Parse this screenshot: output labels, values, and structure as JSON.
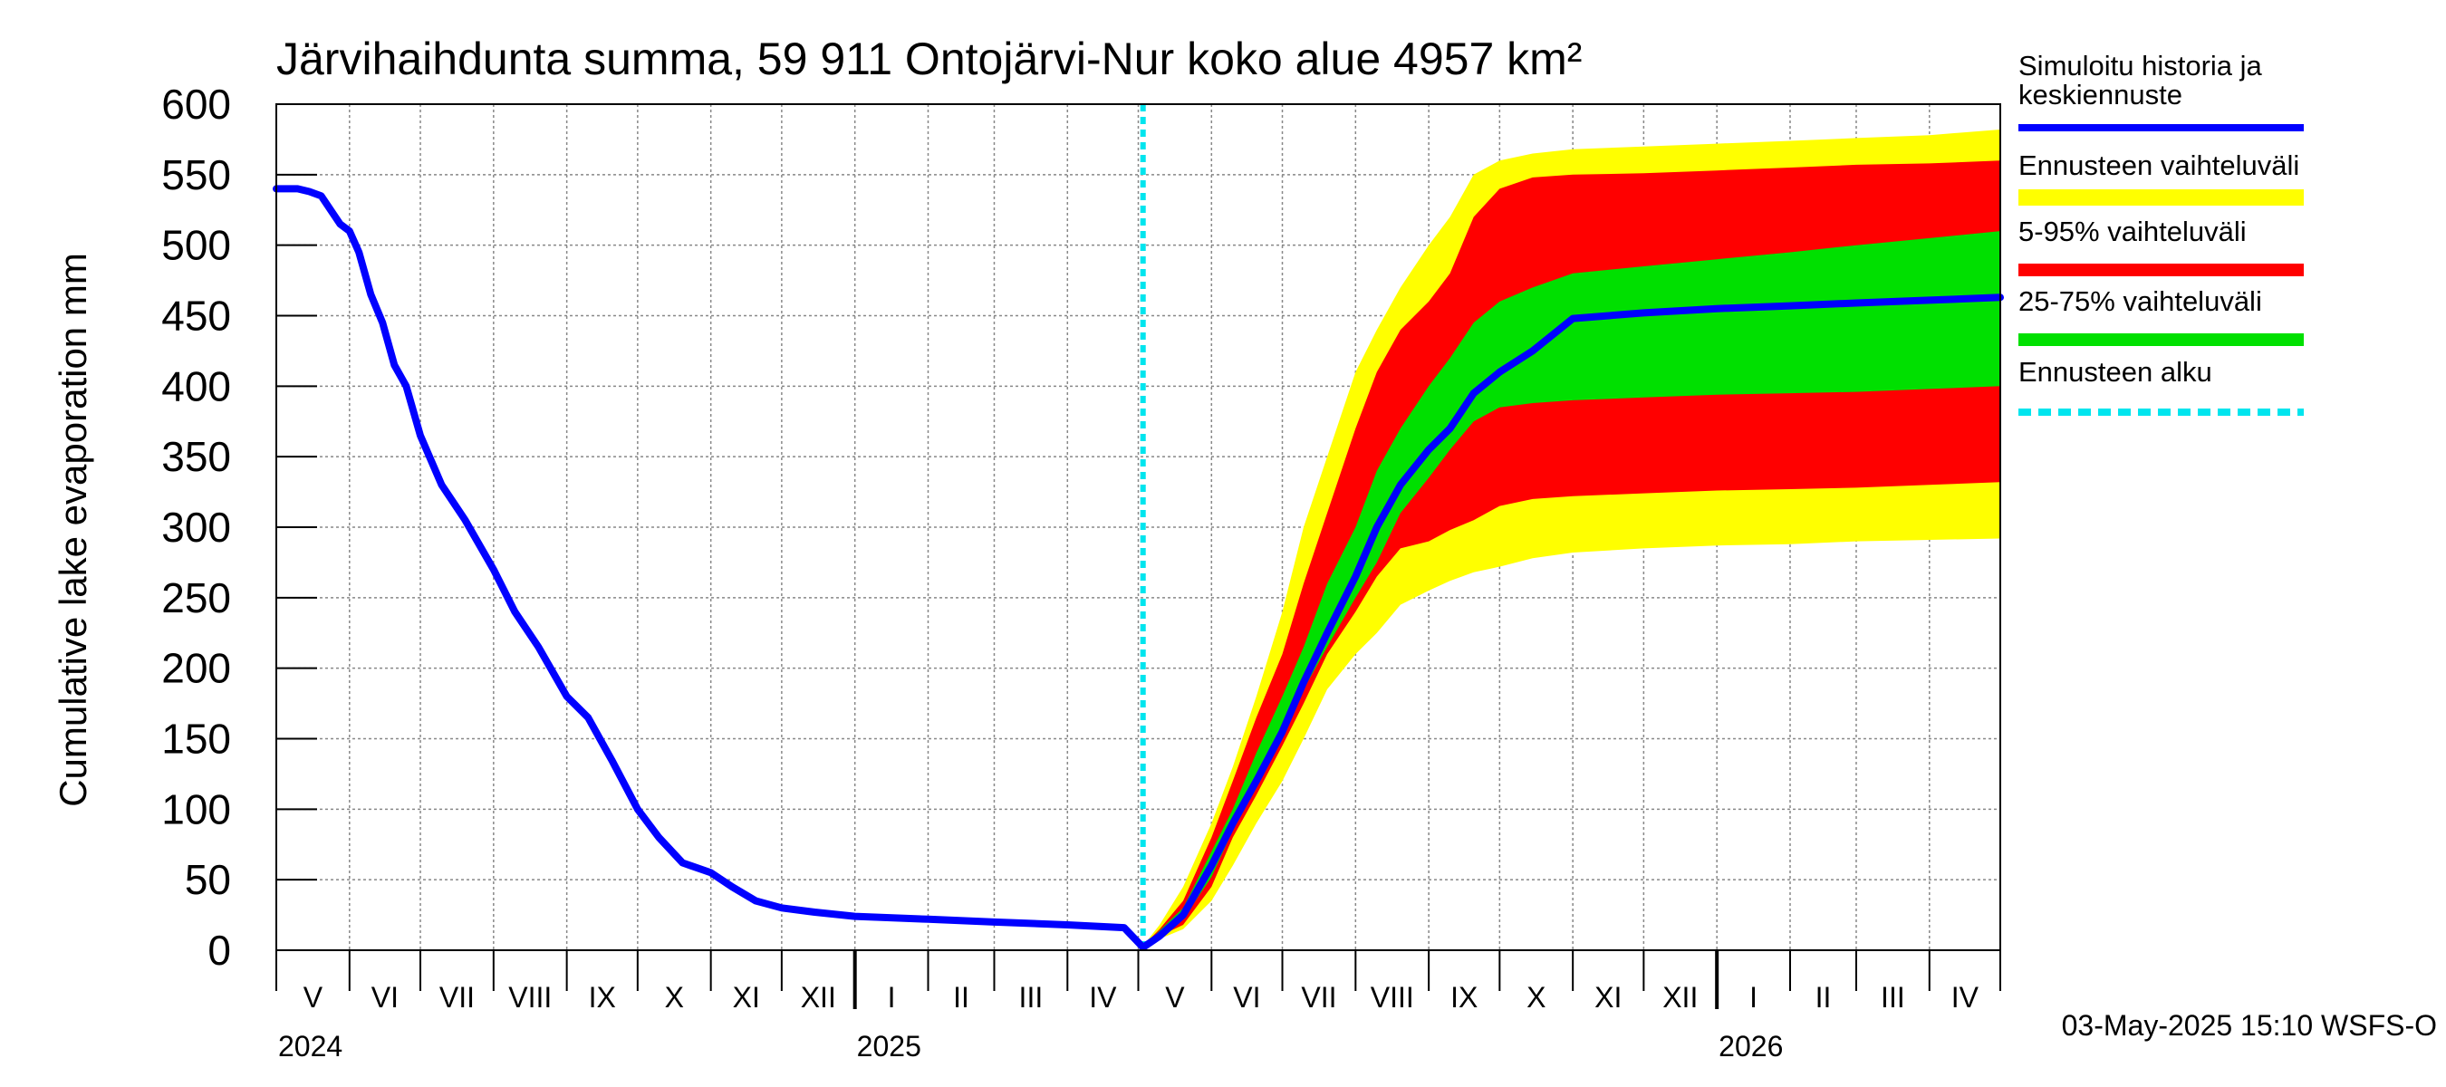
{
  "chart_data": {
    "type": "area",
    "title": "Järvihaihdunta summa, 59 911 Ontojärvi-Nur koko alue 4957 km²",
    "ylabel": "Cumulative lake evaporation   mm",
    "ylim": [
      0,
      600
    ],
    "yticks": [
      0,
      50,
      100,
      150,
      200,
      250,
      300,
      350,
      400,
      450,
      500,
      550,
      600
    ],
    "xlim": [
      "2024-05-01",
      "2026-05-01"
    ],
    "grid": true,
    "legend_position": "right",
    "month_labels": [
      "V",
      "VI",
      "VII",
      "VIII",
      "IX",
      "X",
      "XI",
      "XII",
      "I",
      "II",
      "III",
      "IV",
      "V",
      "VI",
      "VII",
      "VIII",
      "IX",
      "X",
      "XI",
      "XII",
      "I",
      "II",
      "III",
      "IV"
    ],
    "year_labels": [
      {
        "label": "2024",
        "at": "2024-05-01"
      },
      {
        "label": "2025",
        "at": "2025-01-01"
      },
      {
        "label": "2026",
        "at": "2026-01-01"
      }
    ],
    "forecast_start": "2025-05-03",
    "timestamp": "03-May-2025 15:10 WSFS-O",
    "legend": [
      {
        "label": "Simuloitu historia ja keskiennuste",
        "color": "#0000ff",
        "style": "solid"
      },
      {
        "label": "Ennusteen vaihteluväli",
        "color": "#ffff00",
        "style": "solid"
      },
      {
        "label": "5-95% vaihteluväli",
        "color": "#ff0000",
        "style": "solid"
      },
      {
        "label": "25-75% vaihteluväli",
        "color": "#00e000",
        "style": "solid"
      },
      {
        "label": "Ennusteen alku",
        "color": "#00e5ee",
        "style": "dashed"
      }
    ],
    "series": [
      {
        "name": "Simuloitu historia ja keskiennuste",
        "x": [
          "2024-05-01",
          "2024-05-10",
          "2024-05-15",
          "2024-05-20",
          "2024-05-28",
          "2024-06-01",
          "2024-06-05",
          "2024-06-10",
          "2024-06-15",
          "2024-06-20",
          "2024-06-25",
          "2024-07-01",
          "2024-07-10",
          "2024-07-20",
          "2024-08-01",
          "2024-08-10",
          "2024-08-20",
          "2024-09-01",
          "2024-09-10",
          "2024-09-20",
          "2024-10-01",
          "2024-10-10",
          "2024-10-20",
          "2024-11-01",
          "2024-11-10",
          "2024-11-20",
          "2024-12-01",
          "2024-12-15",
          "2025-01-01",
          "2025-02-01",
          "2025-03-01",
          "2025-04-01",
          "2025-04-25",
          "2025-05-03",
          "2025-05-10",
          "2025-05-20",
          "2025-06-01",
          "2025-06-10",
          "2025-06-20",
          "2025-07-01",
          "2025-07-10",
          "2025-07-20",
          "2025-08-01",
          "2025-08-10",
          "2025-08-20",
          "2025-09-01",
          "2025-09-10",
          "2025-09-20",
          "2025-10-01",
          "2025-10-15",
          "2025-11-01",
          "2025-12-01",
          "2026-01-01",
          "2026-02-01",
          "2026-03-01",
          "2026-04-01",
          "2026-05-01"
        ],
        "y": [
          540,
          540,
          538,
          535,
          515,
          510,
          495,
          465,
          445,
          415,
          400,
          365,
          330,
          305,
          270,
          240,
          215,
          180,
          165,
          135,
          100,
          80,
          62,
          55,
          45,
          35,
          30,
          27,
          24,
          22,
          20,
          18,
          16,
          2,
          10,
          25,
          60,
          90,
          120,
          155,
          190,
          225,
          265,
          300,
          330,
          355,
          370,
          395,
          410,
          425,
          448,
          452,
          455,
          457,
          459,
          461,
          463
        ]
      }
    ],
    "bands": [
      {
        "name": "Ennusteen vaihteluväli",
        "color": "#ffff00",
        "x": [
          "2025-05-03",
          "2025-05-10",
          "2025-05-20",
          "2025-06-01",
          "2025-06-10",
          "2025-06-20",
          "2025-07-01",
          "2025-07-10",
          "2025-07-20",
          "2025-08-01",
          "2025-08-10",
          "2025-08-20",
          "2025-09-01",
          "2025-09-10",
          "2025-09-20",
          "2025-10-01",
          "2025-10-15",
          "2025-11-01",
          "2025-12-01",
          "2026-01-01",
          "2026-02-01",
          "2026-03-01",
          "2026-04-01",
          "2026-05-01"
        ],
        "low": [
          0,
          8,
          15,
          35,
          60,
          90,
          120,
          150,
          185,
          210,
          225,
          245,
          255,
          262,
          268,
          272,
          278,
          282,
          285,
          287,
          288,
          290,
          291,
          292
        ],
        "high": [
          3,
          18,
          45,
          90,
          130,
          180,
          240,
          300,
          350,
          410,
          440,
          470,
          500,
          520,
          550,
          560,
          565,
          568,
          570,
          572,
          574,
          576,
          578,
          582
        ]
      },
      {
        "name": "5-95% vaihteluväli",
        "color": "#ff0000",
        "x": [
          "2025-05-03",
          "2025-05-10",
          "2025-05-20",
          "2025-06-01",
          "2025-06-10",
          "2025-06-20",
          "2025-07-01",
          "2025-07-10",
          "2025-07-20",
          "2025-08-01",
          "2025-08-10",
          "2025-08-20",
          "2025-09-01",
          "2025-09-10",
          "2025-09-20",
          "2025-10-01",
          "2025-10-15",
          "2025-11-01",
          "2025-12-01",
          "2026-01-01",
          "2026-02-01",
          "2026-03-01",
          "2026-04-01",
          "2026-05-01"
        ],
        "low": [
          0,
          10,
          18,
          45,
          80,
          110,
          145,
          175,
          210,
          240,
          265,
          285,
          290,
          298,
          305,
          315,
          320,
          322,
          324,
          326,
          327,
          328,
          330,
          332
        ],
        "high": [
          3,
          15,
          35,
          80,
          120,
          165,
          210,
          260,
          310,
          370,
          410,
          440,
          460,
          480,
          520,
          540,
          548,
          550,
          551,
          553,
          555,
          557,
          558,
          560
        ]
      },
      {
        "name": "25-75% vaihteluväli",
        "color": "#00e000",
        "x": [
          "2025-05-03",
          "2025-05-10",
          "2025-05-20",
          "2025-06-01",
          "2025-06-10",
          "2025-06-20",
          "2025-07-01",
          "2025-07-10",
          "2025-07-20",
          "2025-08-01",
          "2025-08-10",
          "2025-08-20",
          "2025-09-01",
          "2025-09-10",
          "2025-09-20",
          "2025-10-01",
          "2025-10-15",
          "2025-11-01",
          "2025-12-01",
          "2026-01-01",
          "2026-02-01",
          "2026-03-01",
          "2026-04-01",
          "2026-05-01"
        ],
        "low": [
          1,
          10,
          22,
          52,
          85,
          115,
          150,
          185,
          215,
          250,
          275,
          310,
          335,
          355,
          375,
          385,
          388,
          390,
          392,
          394,
          395,
          396,
          398,
          400
        ],
        "high": [
          2,
          14,
          30,
          70,
          100,
          140,
          180,
          215,
          260,
          300,
          340,
          370,
          400,
          420,
          445,
          460,
          470,
          480,
          485,
          490,
          495,
          500,
          505,
          510
        ]
      }
    ]
  }
}
